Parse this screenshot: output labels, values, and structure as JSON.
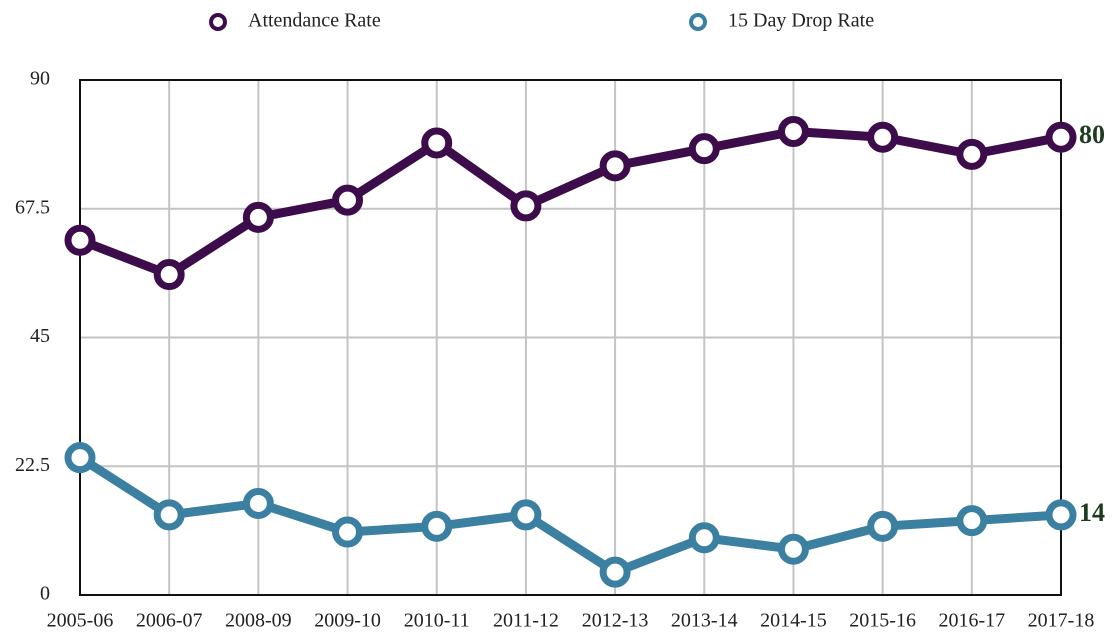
{
  "chart_data": {
    "type": "line",
    "categories": [
      "2005-06",
      "2006-07",
      "2008-09",
      "2009-10",
      "2010-11",
      "2011-12",
      "2012-13",
      "2013-14",
      "2014-15",
      "2015-16",
      "2016-17",
      "2017-18"
    ],
    "series": [
      {
        "name": "Attendance Rate",
        "color": "#3d0c4a",
        "values": [
          62,
          56,
          66,
          69,
          79,
          68,
          75,
          78,
          81,
          80,
          77,
          80
        ]
      },
      {
        "name": "15 Day Drop Rate",
        "color": "#3b7fa1",
        "values": [
          24,
          14,
          16,
          11,
          12,
          14,
          4,
          10,
          8,
          12,
          13,
          14
        ]
      }
    ],
    "ylim": [
      0,
      90
    ],
    "yticks": [
      0,
      22.5,
      45,
      67.5,
      90
    ],
    "grid": true,
    "legend": "top"
  }
}
